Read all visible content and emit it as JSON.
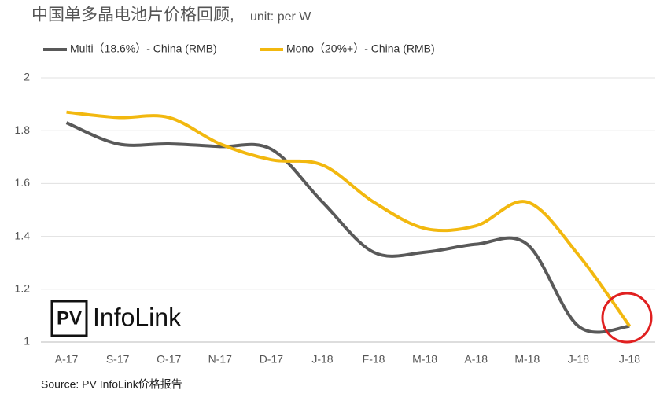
{
  "chart_data": {
    "type": "line",
    "title": "中国单多晶电池片价格回顾,",
    "subtitle": "unit: per W",
    "categories": [
      "A-17",
      "S-17",
      "O-17",
      "N-17",
      "D-17",
      "J-18",
      "F-18",
      "M-18",
      "A-18",
      "M-18",
      "J-18",
      "J-18"
    ],
    "series": [
      {
        "name": "Multi（18.6%）- China (RMB)",
        "color": "#595959",
        "values": [
          1.83,
          1.75,
          1.75,
          1.74,
          1.73,
          1.53,
          1.34,
          1.34,
          1.37,
          1.37,
          1.06,
          1.06
        ]
      },
      {
        "name": "Mono（20%+）- China (RMB)",
        "color": "#f2b80f",
        "values": [
          1.87,
          1.85,
          1.85,
          1.75,
          1.69,
          1.67,
          1.53,
          1.43,
          1.44,
          1.53,
          1.33,
          1.06
        ]
      }
    ],
    "ylim": [
      1,
      2
    ],
    "yticks": [
      1,
      1.2,
      1.4,
      1.6,
      1.8,
      2
    ],
    "grid": true,
    "logo_box": "PV",
    "logo_text": "InfoLink",
    "source": "Source: PV InfoLink价格报告"
  }
}
